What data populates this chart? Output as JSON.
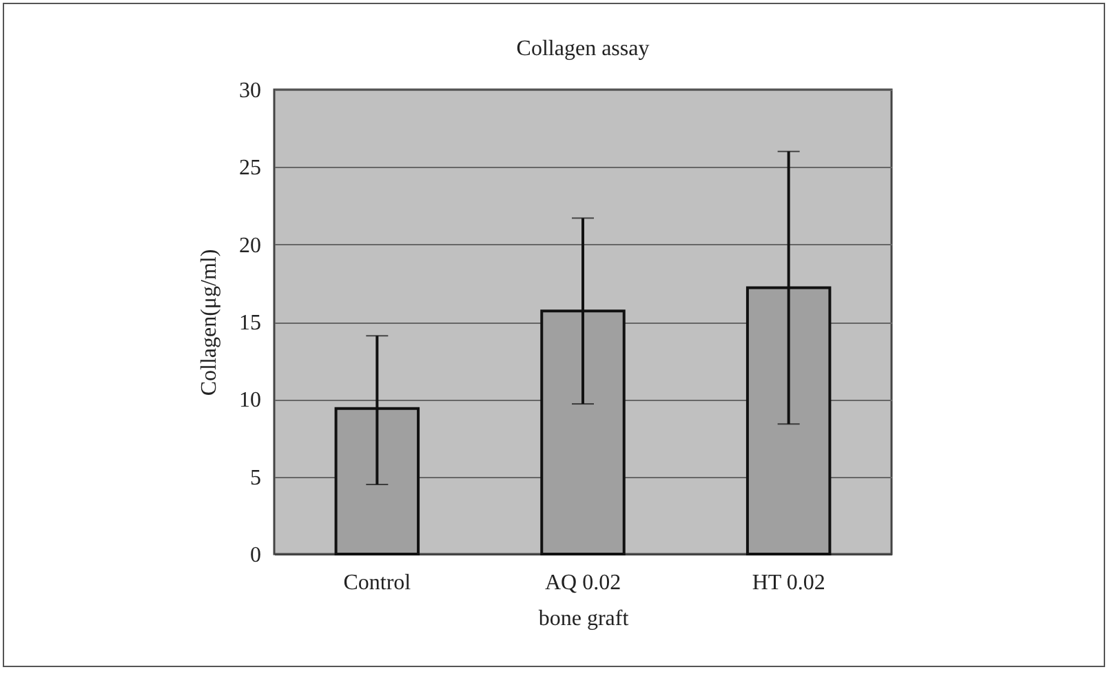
{
  "chart_data": {
    "type": "bar",
    "title": "Collagen assay",
    "xlabel": "bone graft",
    "ylabel": "Collagen(μg/ml)",
    "categories": [
      "Control",
      "AQ 0.02",
      "HT 0.02"
    ],
    "values": [
      9.4,
      15.7,
      17.2
    ],
    "color": "#a0a0a0",
    "errors": [
      [
        4.5,
        14.1
      ],
      [
        9.7,
        21.7
      ],
      [
        8.4,
        26.0
      ]
    ],
    "ylim": [
      0,
      30
    ],
    "yticks": [
      0,
      5,
      10,
      15,
      20,
      25,
      30
    ],
    "grid": "y"
  }
}
